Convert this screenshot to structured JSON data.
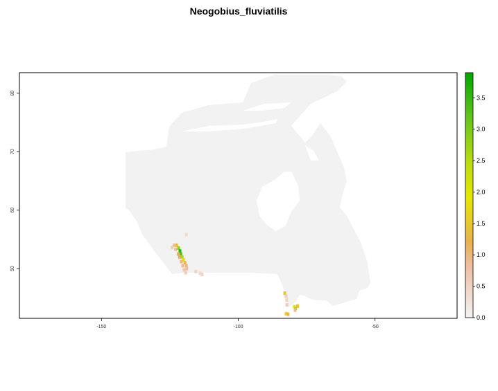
{
  "chart_data": {
    "type": "raster-map",
    "title": "Neogobius_fluviatilis",
    "region": "Canada",
    "xlim": [
      -180,
      -20
    ],
    "ylim": [
      41.5,
      83.5
    ],
    "x_ticks": [
      -150,
      -100,
      -50
    ],
    "y_ticks": [
      50,
      60,
      70,
      80
    ],
    "legend": {
      "position": "right",
      "min": 0.0,
      "max": 3.9,
      "ticks": [
        "0.0",
        "0.5",
        "1.0",
        "1.5",
        "2.0",
        "2.5",
        "3.0",
        "3.5"
      ],
      "tick_values": [
        0.0,
        0.5,
        1.0,
        1.5,
        2.0,
        2.5,
        3.0,
        3.5
      ],
      "color_stops": [
        {
          "value": 0.0,
          "color": "#f2f2f2"
        },
        {
          "value": 0.8,
          "color": "#eebfa6"
        },
        {
          "value": 1.2,
          "color": "#e8b050"
        },
        {
          "value": 1.9,
          "color": "#e6e600"
        },
        {
          "value": 2.5,
          "color": "#b7dc0e"
        },
        {
          "value": 3.2,
          "color": "#63c21d"
        },
        {
          "value": 3.9,
          "color": "#00a600"
        }
      ]
    },
    "land_color": "#f2f2f2",
    "presence_cells": [
      {
        "lon": -123.5,
        "lat": 54.0,
        "value": 0.9
      },
      {
        "lon": -122.5,
        "lat": 54.0,
        "value": 1.4
      },
      {
        "lon": -121.8,
        "lat": 53.5,
        "value": 2.9
      },
      {
        "lon": -121.3,
        "lat": 53.0,
        "value": 3.6
      },
      {
        "lon": -121.0,
        "lat": 52.5,
        "value": 3.3
      },
      {
        "lon": -120.5,
        "lat": 52.0,
        "value": 2.6
      },
      {
        "lon": -120.0,
        "lat": 51.5,
        "value": 1.8
      },
      {
        "lon": -119.5,
        "lat": 51.0,
        "value": 1.3
      },
      {
        "lon": -119.0,
        "lat": 50.5,
        "value": 1.0
      },
      {
        "lon": -118.8,
        "lat": 50.0,
        "value": 0.8
      },
      {
        "lon": -122.0,
        "lat": 52.5,
        "value": 1.1
      },
      {
        "lon": -121.5,
        "lat": 52.0,
        "value": 1.2
      },
      {
        "lon": -120.8,
        "lat": 51.2,
        "value": 1.0
      },
      {
        "lon": -120.3,
        "lat": 50.5,
        "value": 0.9
      },
      {
        "lon": -119.8,
        "lat": 49.8,
        "value": 0.7
      },
      {
        "lon": -119.2,
        "lat": 49.3,
        "value": 0.6
      },
      {
        "lon": -124.2,
        "lat": 53.6,
        "value": 0.6
      },
      {
        "lon": -122.9,
        "lat": 53.3,
        "value": 0.8
      },
      {
        "lon": -119.0,
        "lat": 55.8,
        "value": 0.4
      },
      {
        "lon": -115.5,
        "lat": 49.5,
        "value": 0.5
      },
      {
        "lon": -114.0,
        "lat": 49.2,
        "value": 0.4
      },
      {
        "lon": -113.2,
        "lat": 49.0,
        "value": 0.5
      },
      {
        "lon": -83.0,
        "lat": 45.8,
        "value": 1.5
      },
      {
        "lon": -82.5,
        "lat": 45.3,
        "value": 0.6
      },
      {
        "lon": -82.3,
        "lat": 44.6,
        "value": 0.5
      },
      {
        "lon": -82.2,
        "lat": 43.8,
        "value": 0.6
      },
      {
        "lon": -82.5,
        "lat": 42.3,
        "value": 1.6
      },
      {
        "lon": -81.8,
        "lat": 42.2,
        "value": 1.3
      },
      {
        "lon": -79.5,
        "lat": 43.5,
        "value": 1.9
      },
      {
        "lon": -79.0,
        "lat": 43.2,
        "value": 2.6
      },
      {
        "lon": -78.3,
        "lat": 43.6,
        "value": 1.4
      },
      {
        "lon": -79.2,
        "lat": 42.9,
        "value": 0.9
      }
    ]
  }
}
